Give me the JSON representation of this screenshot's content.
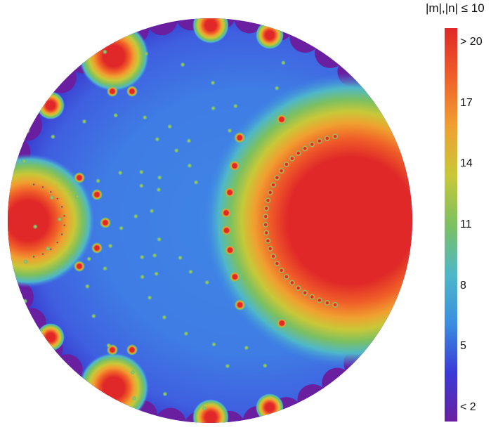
{
  "chart_data": {
    "type": "heatmap",
    "title": "",
    "colorbar": {
      "label": "|m|,|n| ≤ 10",
      "range": [
        2,
        20
      ],
      "ticks": [
        {
          "value": 20,
          "label": "> 20"
        },
        {
          "value": 17,
          "label": "17"
        },
        {
          "value": 14,
          "label": "14"
        },
        {
          "value": 11,
          "label": "11"
        },
        {
          "value": 8,
          "label": "8"
        },
        {
          "value": 5,
          "label": "5"
        },
        {
          "value": 2,
          "label": "< 2"
        }
      ],
      "colormap": [
        "#6a1fa0",
        "#3a3ad8",
        "#3a8fe0",
        "#4fb8c8",
        "#7cc060",
        "#c8c838",
        "#f0a030",
        "#f06028",
        "#e02828"
      ]
    },
    "domain_shape": "disk"
  }
}
